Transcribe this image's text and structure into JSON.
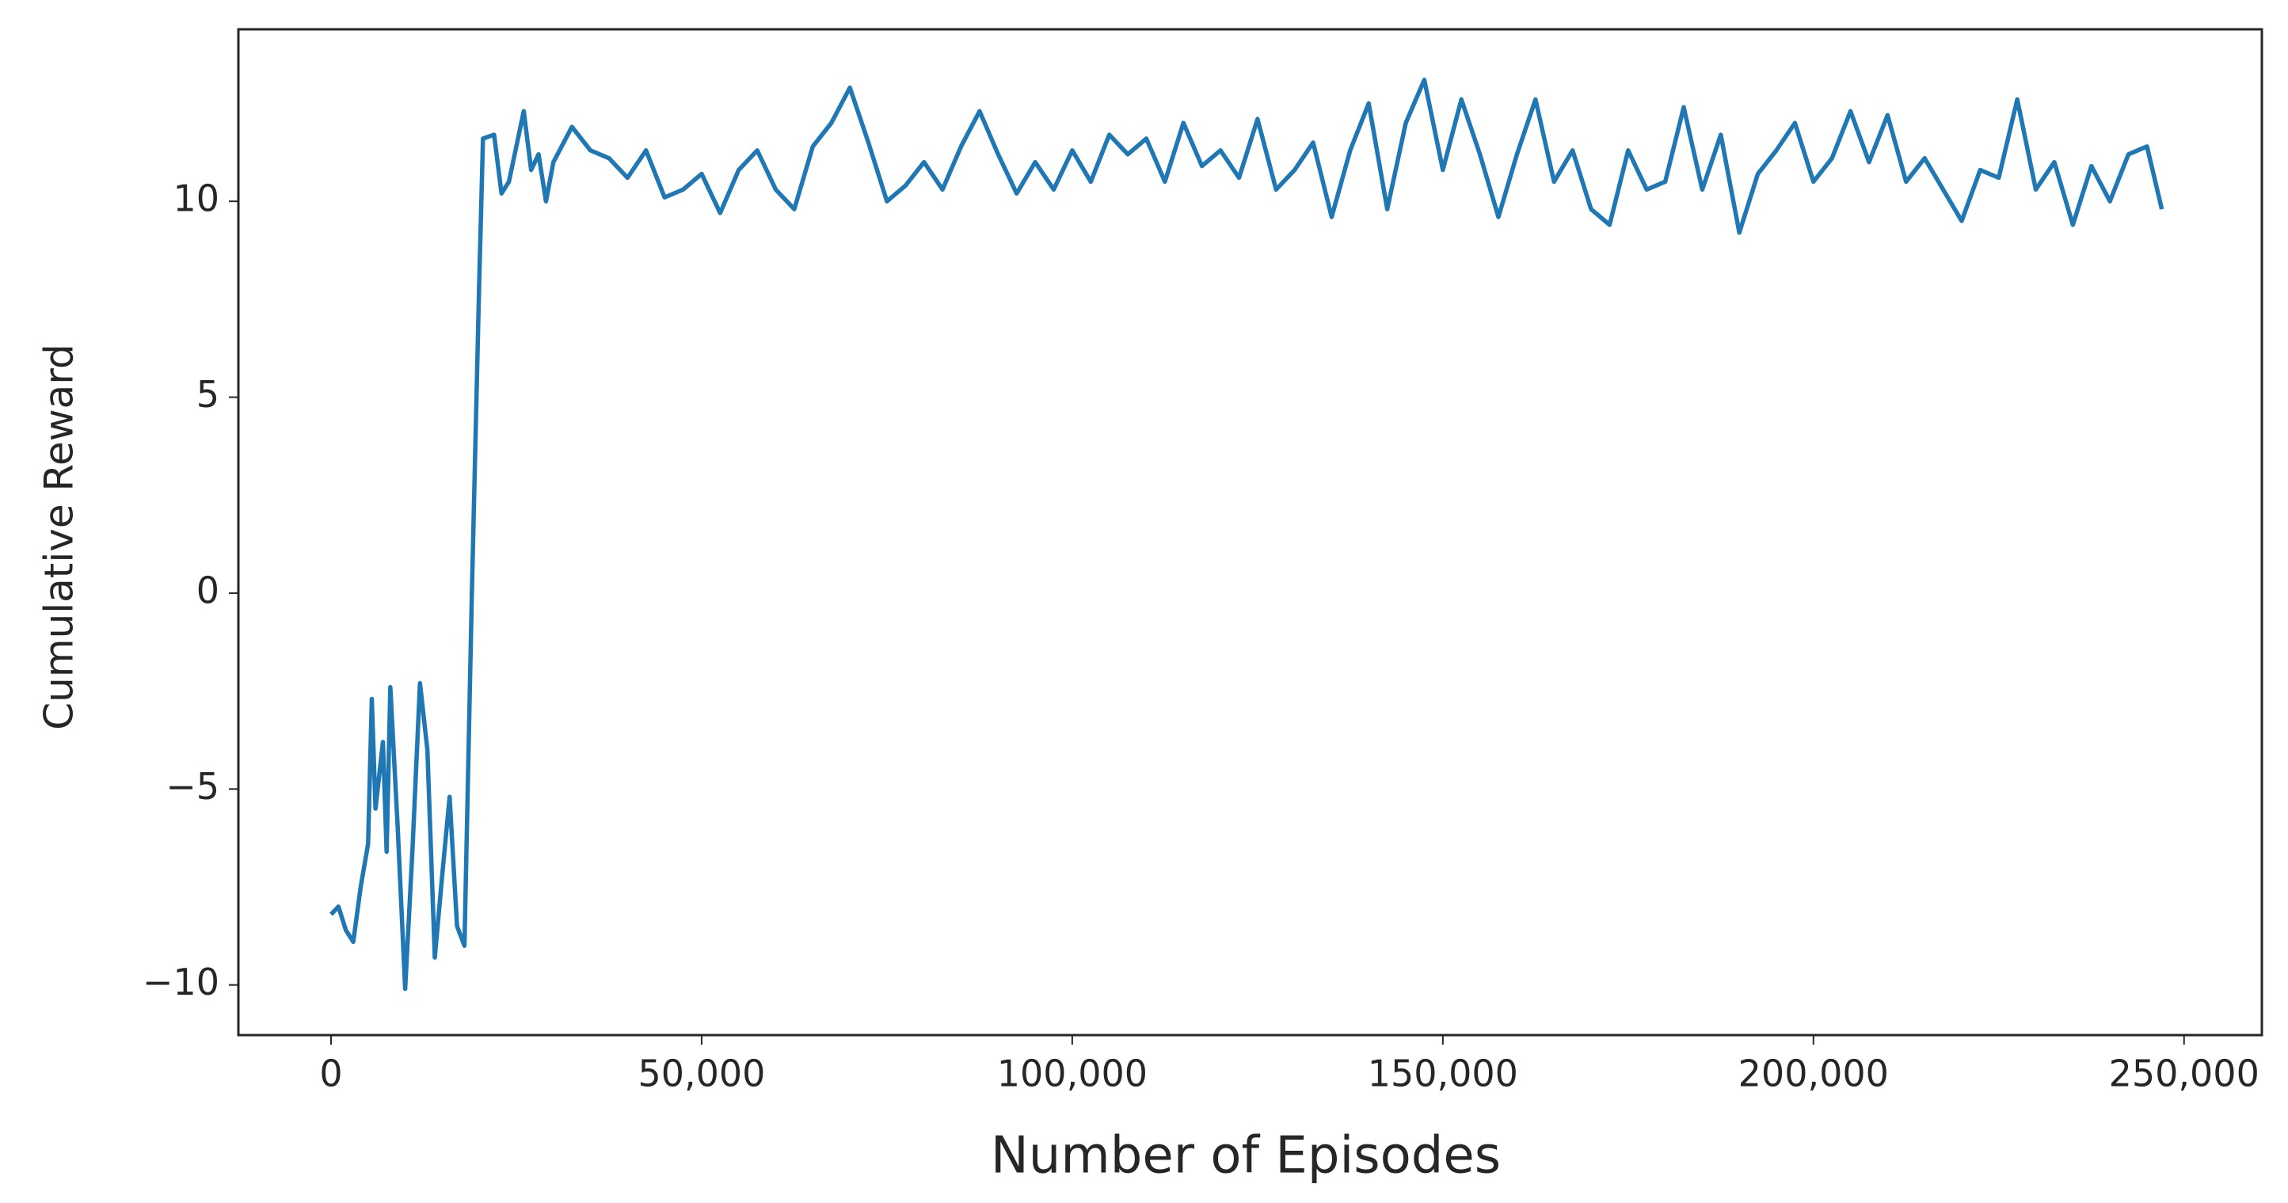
{
  "chart_data": {
    "type": "line",
    "xlabel": "Number of Episodes",
    "ylabel": "Cumulative Reward",
    "x": [
      0,
      1000,
      2000,
      3000,
      4000,
      5000,
      5500,
      6000,
      7000,
      7500,
      8000,
      9000,
      10000,
      11000,
      12000,
      13000,
      14000,
      15000,
      16000,
      17000,
      18000,
      19000,
      20000,
      20500,
      22000,
      23000,
      24000,
      26000,
      27000,
      28000,
      29000,
      30000,
      32500,
      35000,
      37500,
      40000,
      42500,
      45000,
      47500,
      50000,
      52500,
      55000,
      57500,
      60000,
      62500,
      65000,
      67500,
      70000,
      72500,
      75000,
      77500,
      80000,
      82500,
      85000,
      87500,
      90000,
      92500,
      95000,
      97500,
      100000,
      102500,
      105000,
      107500,
      110000,
      112500,
      115000,
      117500,
      120000,
      122500,
      125000,
      127500,
      130000,
      132500,
      135000,
      137500,
      140000,
      142500,
      145000,
      147500,
      150000,
      152500,
      155000,
      157500,
      160000,
      162500,
      165000,
      167500,
      170000,
      172500,
      175000,
      177500,
      180000,
      182500,
      185000,
      187500,
      190000,
      192500,
      195000,
      197500,
      200000,
      202500,
      205000,
      207500,
      210000,
      212500,
      215000,
      217500,
      220000,
      222500,
      225000,
      227500,
      230000,
      232500,
      235000,
      237500,
      240000,
      242500,
      245000,
      247000
    ],
    "values": [
      -8.2,
      -8.0,
      -8.6,
      -8.9,
      -7.5,
      -6.4,
      -2.7,
      -5.5,
      -3.8,
      -6.6,
      -2.4,
      -6.0,
      -10.1,
      -6.5,
      -2.3,
      -4.0,
      -9.3,
      -7.2,
      -5.2,
      -8.5,
      -9.0,
      0,
      8,
      11.6,
      11.7,
      10.2,
      10.5,
      12.3,
      10.8,
      11.2,
      10.0,
      11.0,
      11.9,
      11.3,
      11.1,
      10.6,
      11.3,
      10.1,
      10.3,
      10.7,
      9.7,
      10.8,
      11.3,
      10.3,
      9.8,
      11.4,
      12.0,
      12.9,
      11.5,
      10.0,
      10.4,
      11.0,
      10.3,
      11.4,
      12.3,
      11.2,
      10.2,
      11.0,
      10.3,
      11.3,
      10.5,
      11.7,
      11.2,
      11.6,
      10.5,
      12.0,
      10.9,
      11.3,
      10.6,
      12.1,
      10.3,
      10.8,
      11.5,
      9.6,
      11.3,
      12.5,
      9.8,
      12.0,
      13.1,
      10.8,
      12.6,
      11.2,
      9.6,
      11.2,
      12.6,
      10.5,
      11.3,
      9.8,
      9.4,
      11.3,
      10.3,
      10.5,
      12.4,
      10.3,
      11.7,
      9.2,
      10.7,
      11.3,
      12.0,
      10.5,
      11.1,
      12.3,
      11.0,
      12.2,
      10.5,
      11.1,
      10.3,
      9.5,
      10.8,
      10.6,
      12.6,
      10.3,
      11.0,
      9.4,
      10.9,
      10.0,
      11.2,
      11.4,
      9.8
    ],
    "color": "#1f77b4",
    "xlim": [
      -12500,
      260500
    ],
    "ylim": [
      -11.28,
      14.39
    ],
    "xticks": [
      0,
      {
        "value": 50000,
        "label": "50,000"
      },
      {
        "value": 100000,
        "label": "100,000"
      },
      {
        "value": 150000,
        "label": "150,000"
      },
      {
        "value": 200000,
        "label": "200,000"
      },
      {
        "value": 250000,
        "label": "250,000"
      }
    ],
    "yticks": [
      {
        "value": -10,
        "label": "−10"
      },
      {
        "value": -5,
        "label": "−5"
      },
      0,
      5,
      10
    ],
    "grid": false
  }
}
